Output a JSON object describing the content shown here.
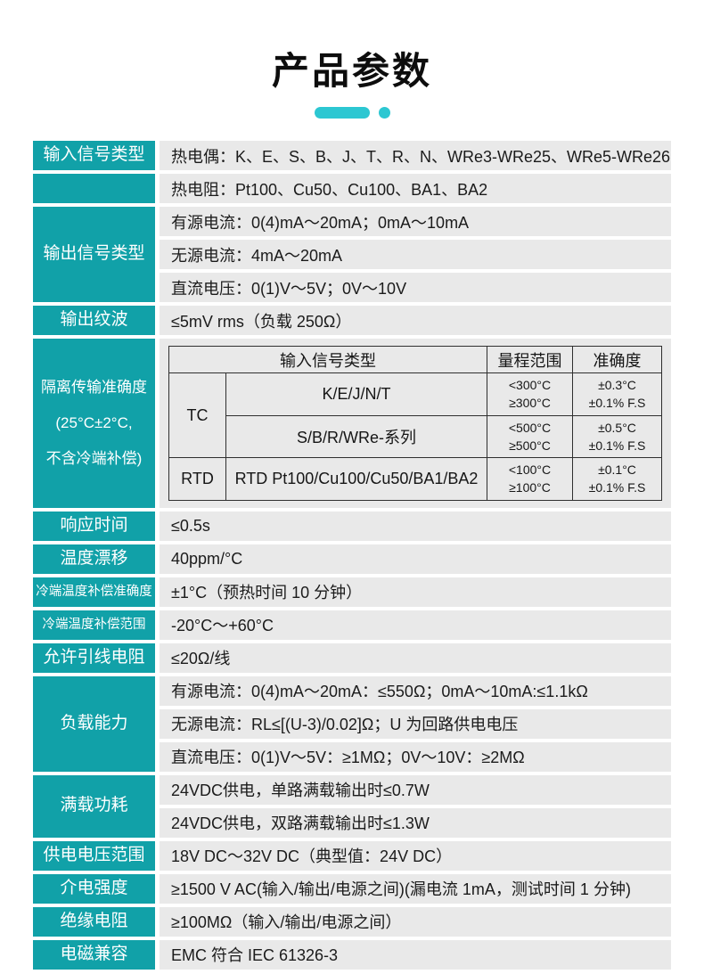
{
  "title": "产品参数",
  "colors": {
    "label_teal": "#11a1a8",
    "title_accent": "#2cc7d2",
    "row_gray": "#e9e9e9",
    "table_border": "#2f2f2f",
    "text_dark": "#1b1b1b"
  },
  "params": {
    "input_signal": {
      "label": "输入信号类型",
      "row1": "热电偶：K、E、S、B、J、T、R、N、WRe3-WRe25、WRe5-WRe26",
      "row2": "热电阻：Pt100、Cu50、Cu100、BA1、BA2"
    },
    "output_signal": {
      "label": "输出信号类型",
      "row1": "有源电流：0(4)mA～20mA；0mA～10mA",
      "row2": "无源电流：4mA～20mA",
      "row3": "直流电压：0(1)V～5V；0V～10V"
    },
    "output_ripple": {
      "label": "输出纹波",
      "value": "≤5mV rms（负载 250Ω）"
    },
    "isolation": {
      "label_line1": "隔离传输准确度",
      "label_line2": "(25°C±2°C,",
      "label_line3": "不含冷端补偿)",
      "table": {
        "header_signal": "输入信号类型",
        "header_range": "量程范围",
        "header_accuracy": "准确度",
        "tc": "TC",
        "rtd": "RTD",
        "row1": {
          "signal": "K/E/J/N/T",
          "range1": "<300°C",
          "range2": "≥300°C",
          "acc1": "±0.3°C",
          "acc2": "±0.1% F.S"
        },
        "row2": {
          "signal": "S/B/R/WRe-系列",
          "range1": "<500°C",
          "range2": "≥500°C",
          "acc1": "±0.5°C",
          "acc2": "±0.1% F.S"
        },
        "row3": {
          "signal": "RTD Pt100/Cu100/Cu50/BA1/BA2",
          "range1": "<100°C",
          "range2": "≥100°C",
          "acc1": "±0.1°C",
          "acc2": "±0.1% F.S"
        }
      }
    },
    "response_time": {
      "label": "响应时间",
      "value": "≤0.5s"
    },
    "temp_drift": {
      "label": "温度漂移",
      "value": "40ppm/°C"
    },
    "cold_junction_accuracy": {
      "label": "冷端温度补偿准确度",
      "value": "±1°C（预热时间 10 分钟）"
    },
    "cold_junction_range": {
      "label": "冷端温度补偿范围",
      "value": "-20°C～+60°C"
    },
    "lead_resistance": {
      "label": "允许引线电阻",
      "value": "≤20Ω/线"
    },
    "load_capacity": {
      "label": "负载能力",
      "row1": "有源电流：0(4)mA～20mA：≤550Ω；0mA～10mA:≤1.1kΩ",
      "row2": "无源电流：RL≤[(U-3)/0.02]Ω；U 为回路供电电压",
      "row3": "直流电压：0(1)V～5V：≥1MΩ；0V～10V：≥2MΩ"
    },
    "full_load_power": {
      "label": "满载功耗",
      "row1": "24VDC供电，单路满载输出时≤0.7W",
      "row2": "24VDC供电，双路满载输出时≤1.3W"
    },
    "supply_voltage": {
      "label": "供电电压范围",
      "value": "18V DC～32V DC（典型值：24V DC）"
    },
    "dielectric_strength": {
      "label": "介电强度",
      "value": "≥1500 V AC(输入/输出/电源之间)(漏电流 1mA，测试时间 1 分钟)"
    },
    "insulation_resistance": {
      "label": "绝缘电阻",
      "value": "≥100MΩ（输入/输出/电源之间）"
    },
    "emc": {
      "label": "电磁兼容",
      "value": "EMC 符合 IEC 61326-3"
    }
  }
}
